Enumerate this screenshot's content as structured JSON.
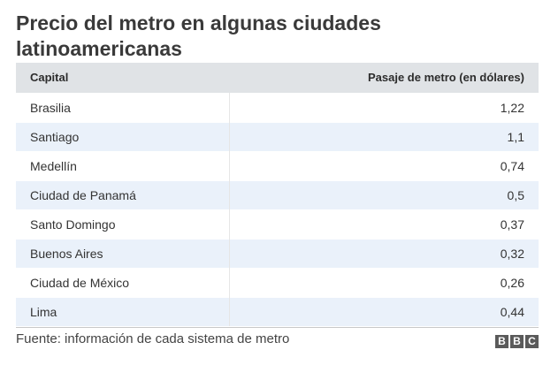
{
  "title": "Precio del metro en algunas ciudades latinoamericanas",
  "source": "Fuente: información de cada sistema de metro",
  "logo_letters": [
    "B",
    "B",
    "C"
  ],
  "colors": {
    "header_bg": "#e0e3e6",
    "row_alt_bg": "#eaf1fa",
    "logo_bg": "#5a5a5a"
  },
  "chart_data": {
    "type": "table",
    "title": "Precio del metro en algunas ciudades latinoamericanas",
    "columns": [
      "Capital",
      "Pasaje de metro (en dólares)"
    ],
    "rows": [
      {
        "capital": "Brasilia",
        "price": "1,22"
      },
      {
        "capital": "Santiago",
        "price": "1,1"
      },
      {
        "capital": "Medellín",
        "price": "0,74"
      },
      {
        "capital": "Ciudad de Panamá",
        "price": "0,5"
      },
      {
        "capital": "Santo Domingo",
        "price": "0,37"
      },
      {
        "capital": "Buenos Aires",
        "price": "0,32"
      },
      {
        "capital": "Ciudad de México",
        "price": "0,26"
      },
      {
        "capital": "Lima",
        "price": "0,44"
      }
    ]
  }
}
